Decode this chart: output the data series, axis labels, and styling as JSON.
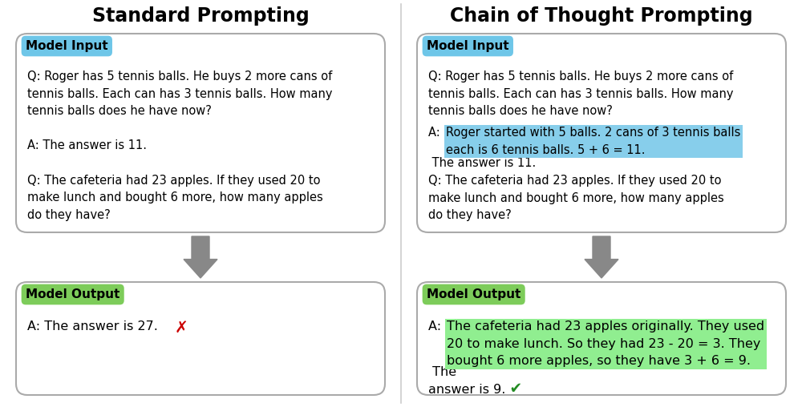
{
  "title_left": "Standard Prompting",
  "title_right": "Chain of Thought Prompting",
  "title_fontsize": 17,
  "label_fontsize": 11,
  "body_fontsize": 10.5,
  "left_input_label": "Model Input",
  "left_output_label": "Model Output",
  "right_input_label": "Model Input",
  "right_output_label": "Model Output",
  "left_input_text": "Q: Roger has 5 tennis balls. He buys 2 more cans of\ntennis balls. Each can has 3 tennis balls. How many\ntennis balls does he have now?\n\nA: The answer is 11.\n\nQ: The cafeteria had 23 apples. If they used 20 to\nmake lunch and bought 6 more, how many apples\ndo they have?",
  "right_q1": "Q: Roger has 5 tennis balls. He buys 2 more cans of\ntennis balls. Each can has 3 tennis balls. How many\ntennis balls does he have now?",
  "right_a_prefix": "A: ",
  "right_a_highlight": "Roger started with 5 balls. 2 cans of 3 tennis balls\neach is 6 tennis balls. 5 + 6 = 11.",
  "right_a_suffix": " The answer is 11.",
  "right_q2": "Q: The cafeteria had 23 apples. If they used 20 to\nmake lunch and bought 6 more, how many apples\ndo they have?",
  "left_output_text": "A: The answer is 27.",
  "right_out_prefix": "A: ",
  "right_out_highlight": "The cafeteria had 23 apples originally. They used\n20 to make lunch. So they had 23 - 20 = 3. They\nbought 6 more apples, so they have 3 + 6 = 9.",
  "right_out_suffix": " The\nanswer is 9.",
  "bg_color": "#ffffff",
  "box_bg": "#ffffff",
  "box_border": "#aaaaaa",
  "input_label_bg": "#6ec6e8",
  "output_label_bg": "#7dcc5a",
  "highlight_blue": "#87ceeb",
  "highlight_green": "#90ee90",
  "arrow_color": "#888888",
  "divider_color": "#cccccc",
  "text_color": "#000000",
  "cross_color": "#cc0000",
  "check_color": "#228b22"
}
